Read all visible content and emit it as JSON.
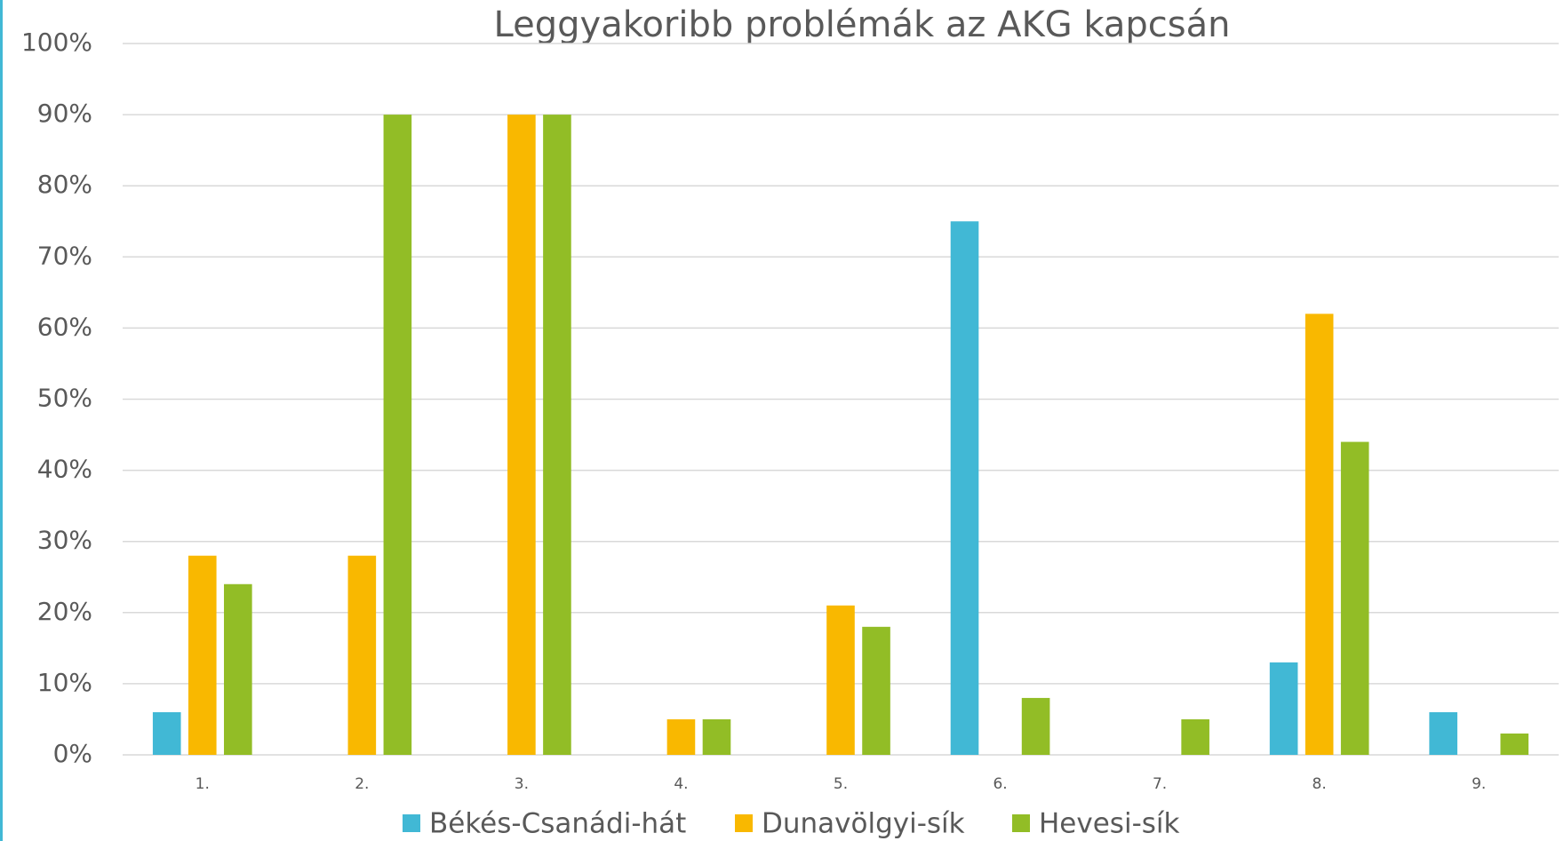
{
  "chart_data": {
    "type": "bar",
    "title": "Leggyakoribb problémák az AKG kapcsán",
    "categories": [
      "1.",
      "2.",
      "3.",
      "4.",
      "5.",
      "6.",
      "7.",
      "8.",
      "9."
    ],
    "series": [
      {
        "name": "Békés-Csanádi-hát",
        "color": "#41b8d5",
        "values": [
          6,
          0,
          0,
          0,
          0,
          75,
          0,
          13,
          6
        ]
      },
      {
        "name": "Dunavölgyi-sík",
        "color": "#f9b800",
        "values": [
          28,
          28,
          90,
          5,
          21,
          0,
          0,
          62,
          0
        ]
      },
      {
        "name": "Hevesi-sík",
        "color": "#92bd26",
        "values": [
          24,
          90,
          90,
          5,
          18,
          8,
          5,
          44,
          3
        ]
      }
    ],
    "ylim": [
      0,
      100
    ],
    "yticks": [
      {
        "value": 0,
        "label": "0%"
      },
      {
        "value": 10,
        "label": "10%"
      },
      {
        "value": 20,
        "label": "20%"
      },
      {
        "value": 30,
        "label": "30%"
      },
      {
        "value": 40,
        "label": "40%"
      },
      {
        "value": 50,
        "label": "50%"
      },
      {
        "value": 60,
        "label": "60%"
      },
      {
        "value": 70,
        "label": "70%"
      },
      {
        "value": 80,
        "label": "80%"
      },
      {
        "value": 90,
        "label": "90%"
      },
      {
        "value": 100,
        "label": "100%"
      }
    ],
    "grid": true,
    "legend": "bottom"
  }
}
